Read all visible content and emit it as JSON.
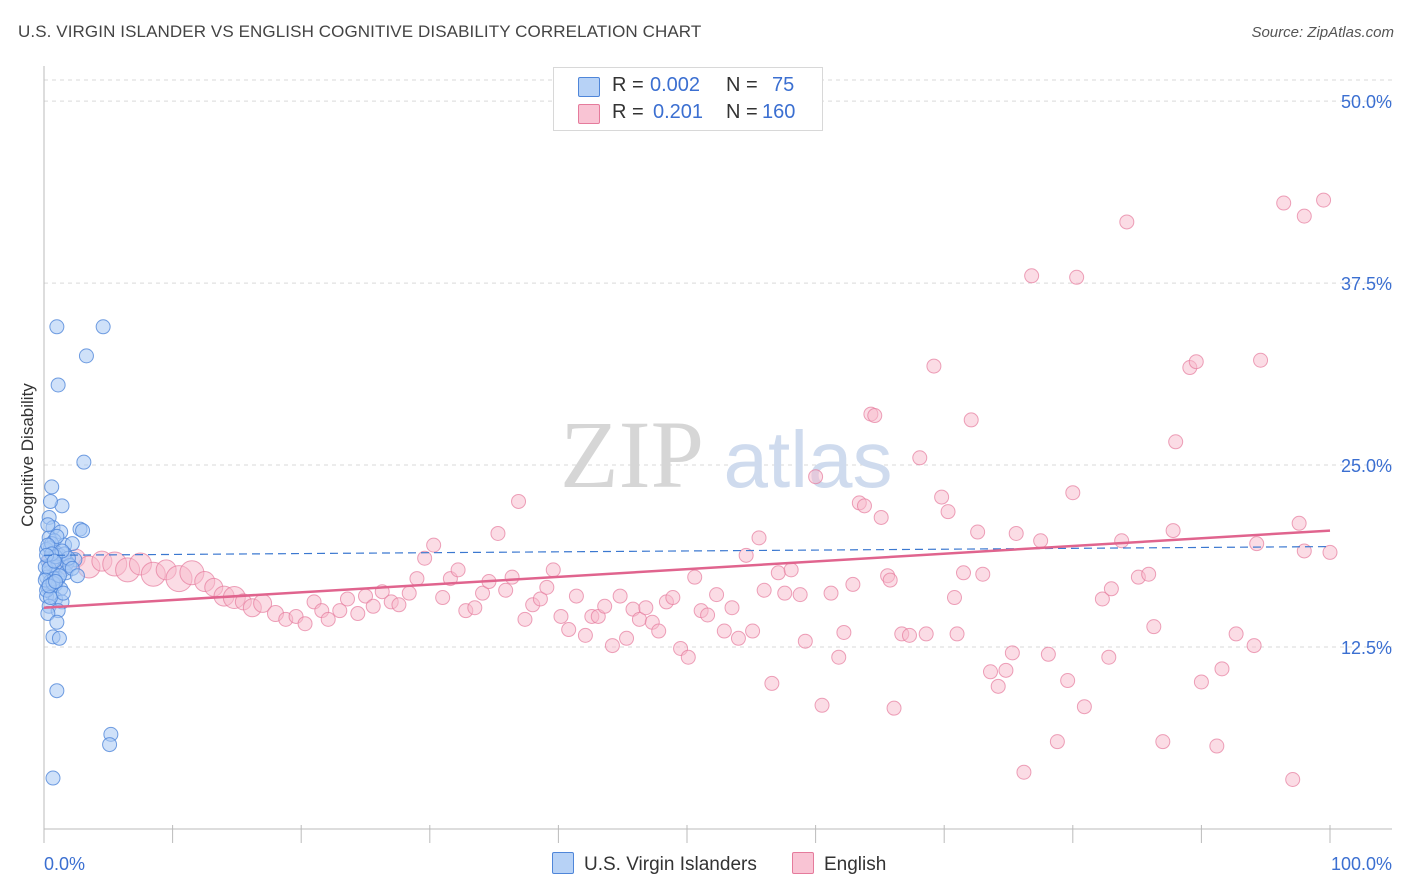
{
  "header": {
    "title": "U.S. VIRGIN ISLANDER VS ENGLISH COGNITIVE DISABILITY CORRELATION CHART",
    "source": "Source: ZipAtlas.com"
  },
  "watermark": {
    "zip": "ZIP",
    "atlas": "atlas"
  },
  "legend_top": {
    "r_label": "R =",
    "n_label": "N =",
    "series": [
      {
        "r": "0.002",
        "n": "75"
      },
      {
        "r": "0.201",
        "n": "160"
      }
    ]
  },
  "legend_bottom": [
    {
      "name": "U.S. Virgin Islanders"
    },
    {
      "name": "English"
    }
  ],
  "chart_data": {
    "type": "scatter",
    "title": "U.S. VIRGIN ISLANDER VS ENGLISH COGNITIVE DISABILITY CORRELATION CHART",
    "xlabel": "",
    "ylabel": "Cognitive Disability",
    "xlim": [
      0,
      100
    ],
    "ylim": [
      0,
      52
    ],
    "x_tick_labels": [
      "0.0%",
      "100.0%"
    ],
    "y_ticks": [
      12.5,
      25.0,
      37.5,
      50.0
    ],
    "y_tick_labels": [
      "12.5%",
      "25.0%",
      "37.5%",
      "50.0%"
    ],
    "grid": true,
    "colors": {
      "blue_fill": "#a8c8f4",
      "blue_stroke": "#4f86d9",
      "blue_line": "#3b78d0",
      "pink_fill": "#f7b9cc",
      "pink_stroke": "#e57b9c",
      "pink_line": "#e0648e",
      "value_text": "#3b6fd1"
    },
    "series": [
      {
        "name": "U.S. Virgin Islanders",
        "r": 0.002,
        "n": 75,
        "trend": {
          "x": [
            0,
            100
          ],
          "y": [
            18.8,
            19.4
          ],
          "style": "dashed"
        },
        "points": [
          [
            1.0,
            34.5
          ],
          [
            4.6,
            34.5
          ],
          [
            3.3,
            32.5
          ],
          [
            1.1,
            30.5
          ],
          [
            3.1,
            25.2
          ],
          [
            0.6,
            23.5
          ],
          [
            1.4,
            22.2
          ],
          [
            0.5,
            22.5
          ],
          [
            0.4,
            21.4
          ],
          [
            0.7,
            20.7
          ],
          [
            1.3,
            20.4
          ],
          [
            2.8,
            20.6
          ],
          [
            3.0,
            20.5
          ],
          [
            0.4,
            20.0
          ],
          [
            0.8,
            19.8
          ],
          [
            1.6,
            19.5
          ],
          [
            2.2,
            19.6
          ],
          [
            0.5,
            19.3
          ],
          [
            0.9,
            19.0
          ],
          [
            1.2,
            18.8
          ],
          [
            2.4,
            18.5
          ],
          [
            0.3,
            18.4
          ],
          [
            0.6,
            18.2
          ],
          [
            1.0,
            18.0
          ],
          [
            1.5,
            17.8
          ],
          [
            0.4,
            17.6
          ],
          [
            0.8,
            17.5
          ],
          [
            0.2,
            17.3
          ],
          [
            1.1,
            17.2
          ],
          [
            0.5,
            17.0
          ],
          [
            0.9,
            16.8
          ],
          [
            0.3,
            16.6
          ],
          [
            1.3,
            16.5
          ],
          [
            0.6,
            16.2
          ],
          [
            0.2,
            16.0
          ],
          [
            0.9,
            15.8
          ],
          [
            1.4,
            15.6
          ],
          [
            0.4,
            15.3
          ],
          [
            1.1,
            15.0
          ],
          [
            0.3,
            14.8
          ],
          [
            1.0,
            14.2
          ],
          [
            0.7,
            13.2
          ],
          [
            1.2,
            13.1
          ],
          [
            1.0,
            9.5
          ],
          [
            5.2,
            6.5
          ],
          [
            5.1,
            5.8
          ],
          [
            0.7,
            3.5
          ],
          [
            0.2,
            19.2
          ],
          [
            0.6,
            19.6
          ],
          [
            1.8,
            18.3
          ],
          [
            0.1,
            18.0
          ],
          [
            0.4,
            17.9
          ],
          [
            0.8,
            17.2
          ],
          [
            1.7,
            17.6
          ],
          [
            0.2,
            16.4
          ],
          [
            0.5,
            15.9
          ],
          [
            1.6,
            18.9
          ],
          [
            2.0,
            18.1
          ],
          [
            0.3,
            20.9
          ],
          [
            1.0,
            20.1
          ],
          [
            1.9,
            18.6
          ],
          [
            0.1,
            17.1
          ],
          [
            0.7,
            16.9
          ],
          [
            2.2,
            17.9
          ],
          [
            0.9,
            18.7
          ],
          [
            0.3,
            19.5
          ],
          [
            1.4,
            19.1
          ],
          [
            0.6,
            18.9
          ],
          [
            2.6,
            17.4
          ],
          [
            0.2,
            18.8
          ],
          [
            0.8,
            18.4
          ],
          [
            1.2,
            17.4
          ],
          [
            0.4,
            16.7
          ],
          [
            1.5,
            16.2
          ],
          [
            0.9,
            17.0
          ]
        ]
      },
      {
        "name": "English",
        "r": 0.201,
        "n": 160,
        "trend": {
          "x": [
            0,
            100
          ],
          "y": [
            15.2,
            20.5
          ],
          "style": "solid"
        },
        "points": [
          [
            0.5,
            18.5,
            8
          ],
          [
            1.5,
            18.2,
            10
          ],
          [
            2.5,
            18.6,
            9
          ],
          [
            3.5,
            18.0,
            11
          ],
          [
            4.5,
            18.4,
            10
          ],
          [
            5.5,
            18.2,
            12
          ],
          [
            6.5,
            17.8,
            12
          ],
          [
            7.5,
            18.2,
            11
          ],
          [
            8.5,
            17.5,
            12
          ],
          [
            9.5,
            17.8,
            10
          ],
          [
            10.5,
            17.2,
            13
          ],
          [
            11.5,
            17.6,
            12
          ],
          [
            12.5,
            17.0,
            10
          ],
          [
            13.2,
            16.6,
            9
          ],
          [
            14.0,
            16.0,
            10
          ],
          [
            14.8,
            15.9,
            11
          ],
          [
            15.5,
            15.6,
            8
          ],
          [
            16.2,
            15.2,
            9
          ],
          [
            17.0,
            15.5,
            9
          ],
          [
            18.0,
            14.8,
            8
          ],
          [
            18.8,
            14.4,
            7
          ],
          [
            19.6,
            14.6,
            7
          ],
          [
            20.3,
            14.1,
            7
          ],
          [
            21.0,
            15.6,
            7
          ],
          [
            21.6,
            15.0,
            7
          ],
          [
            22.1,
            14.4,
            7
          ],
          [
            23.0,
            15.0,
            7
          ],
          [
            23.6,
            15.8,
            7
          ],
          [
            24.4,
            14.8,
            7
          ],
          [
            25.0,
            16.0,
            7
          ],
          [
            25.6,
            15.3,
            7
          ],
          [
            26.3,
            16.3,
            7
          ],
          [
            27.0,
            15.6,
            7
          ],
          [
            27.6,
            15.4,
            7
          ],
          [
            28.4,
            16.2,
            7
          ],
          [
            29.0,
            17.2,
            7
          ],
          [
            29.6,
            18.6,
            7
          ],
          [
            30.3,
            19.5,
            7
          ],
          [
            31.0,
            15.9,
            7
          ],
          [
            31.6,
            17.2,
            7
          ],
          [
            32.2,
            17.8,
            7
          ],
          [
            32.8,
            15.0,
            7
          ],
          [
            33.5,
            15.2,
            7
          ],
          [
            34.1,
            16.2,
            7
          ],
          [
            34.6,
            17.0,
            7
          ],
          [
            35.3,
            20.3,
            7
          ],
          [
            35.9,
            16.4,
            7
          ],
          [
            36.4,
            17.3,
            7
          ],
          [
            36.9,
            22.5,
            7
          ],
          [
            37.4,
            14.4,
            7
          ],
          [
            38.0,
            15.4,
            7
          ],
          [
            38.6,
            15.8,
            7
          ],
          [
            39.1,
            16.6,
            7
          ],
          [
            39.6,
            17.8,
            7
          ],
          [
            40.2,
            14.6,
            7
          ],
          [
            40.8,
            13.7,
            7
          ],
          [
            41.4,
            16.0,
            7
          ],
          [
            42.1,
            13.3,
            7
          ],
          [
            42.6,
            14.6,
            7
          ],
          [
            43.1,
            14.6,
            7
          ],
          [
            43.6,
            15.3,
            7
          ],
          [
            44.2,
            12.6,
            7
          ],
          [
            44.8,
            16.0,
            7
          ],
          [
            45.3,
            13.1,
            7
          ],
          [
            45.8,
            15.1,
            7
          ],
          [
            46.3,
            14.4,
            7
          ],
          [
            46.8,
            15.2,
            7
          ],
          [
            47.3,
            14.2,
            7
          ],
          [
            47.8,
            13.6,
            7
          ],
          [
            48.4,
            15.6,
            7
          ],
          [
            48.9,
            15.9,
            7
          ],
          [
            49.5,
            12.4,
            7
          ],
          [
            50.1,
            11.8,
            7
          ],
          [
            50.6,
            17.3,
            7
          ],
          [
            51.1,
            15.0,
            7
          ],
          [
            51.6,
            14.7,
            7
          ],
          [
            52.3,
            16.1,
            7
          ],
          [
            52.9,
            13.6,
            7
          ],
          [
            53.5,
            15.2,
            7
          ],
          [
            54.0,
            13.1,
            7
          ],
          [
            54.6,
            18.8,
            7
          ],
          [
            55.1,
            13.6,
            7
          ],
          [
            55.6,
            20.0,
            7
          ],
          [
            56.0,
            16.4,
            7
          ],
          [
            56.6,
            10.0,
            7
          ],
          [
            57.1,
            17.6,
            7
          ],
          [
            57.6,
            16.2,
            7
          ],
          [
            58.1,
            17.8,
            7
          ],
          [
            58.8,
            16.1,
            7
          ],
          [
            59.2,
            12.9,
            7
          ],
          [
            60.0,
            24.2,
            7
          ],
          [
            60.5,
            8.5,
            7
          ],
          [
            61.2,
            16.2,
            7
          ],
          [
            61.8,
            11.8,
            7
          ],
          [
            62.2,
            13.5,
            7
          ],
          [
            62.9,
            16.8,
            7
          ],
          [
            63.4,
            22.4,
            7
          ],
          [
            63.8,
            22.2,
            7
          ],
          [
            64.3,
            28.5,
            7
          ],
          [
            64.6,
            28.4,
            7
          ],
          [
            65.1,
            21.4,
            7
          ],
          [
            65.6,
            17.4,
            7
          ],
          [
            66.1,
            8.3,
            7
          ],
          [
            66.7,
            13.4,
            7
          ],
          [
            67.3,
            13.3,
            7
          ],
          [
            68.1,
            25.5,
            7
          ],
          [
            68.6,
            13.4,
            7
          ],
          [
            69.2,
            31.8,
            7
          ],
          [
            69.8,
            22.8,
            7
          ],
          [
            70.3,
            21.8,
            7
          ],
          [
            70.8,
            15.9,
            7
          ],
          [
            71.0,
            13.4,
            7
          ],
          [
            71.5,
            17.6,
            7
          ],
          [
            72.1,
            28.1,
            7
          ],
          [
            72.6,
            20.4,
            7
          ],
          [
            73.0,
            17.5,
            7
          ],
          [
            73.6,
            10.8,
            7
          ],
          [
            74.2,
            9.8,
            7
          ],
          [
            74.8,
            10.9,
            7
          ],
          [
            75.3,
            12.1,
            7
          ],
          [
            75.6,
            20.3,
            7
          ],
          [
            76.2,
            3.9,
            7
          ],
          [
            76.8,
            38.0,
            7
          ],
          [
            78.1,
            12.0,
            7
          ],
          [
            78.8,
            6.0,
            7
          ],
          [
            79.6,
            10.2,
            7
          ],
          [
            80.0,
            23.1,
            7
          ],
          [
            80.3,
            37.9,
            7
          ],
          [
            80.9,
            8.4,
            7
          ],
          [
            82.3,
            15.8,
            7
          ],
          [
            82.8,
            11.8,
            7
          ],
          [
            83.8,
            19.8,
            7
          ],
          [
            84.2,
            41.7,
            7
          ],
          [
            85.1,
            17.3,
            7
          ],
          [
            86.3,
            13.9,
            7
          ],
          [
            87.0,
            6.0,
            7
          ],
          [
            87.8,
            20.5,
            7
          ],
          [
            88.0,
            26.6,
            7
          ],
          [
            89.1,
            31.7,
            7
          ],
          [
            89.6,
            32.1,
            7
          ],
          [
            90.0,
            10.1,
            7
          ],
          [
            91.2,
            5.7,
            7
          ],
          [
            91.6,
            11.0,
            7
          ],
          [
            94.1,
            12.6,
            7
          ],
          [
            94.3,
            19.6,
            7
          ],
          [
            94.6,
            32.2,
            7
          ],
          [
            96.4,
            43.0,
            7
          ],
          [
            97.1,
            3.4,
            7
          ],
          [
            98.0,
            42.1,
            7
          ],
          [
            99.5,
            43.2,
            7
          ],
          [
            98.0,
            19.1,
            7
          ],
          [
            100.0,
            19.0,
            7
          ],
          [
            65.8,
            17.1,
            7
          ],
          [
            77.5,
            19.8,
            7
          ],
          [
            85.9,
            17.5,
            7
          ],
          [
            92.7,
            13.4,
            7
          ],
          [
            97.6,
            21.0,
            7
          ],
          [
            83.0,
            16.5,
            7
          ]
        ]
      }
    ]
  }
}
